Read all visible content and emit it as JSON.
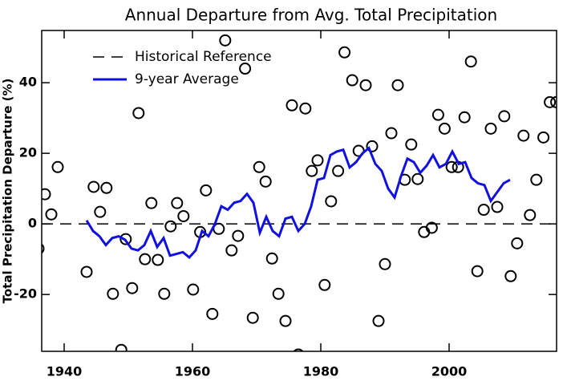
{
  "chart_data": {
    "type": "scatter",
    "title": "Annual Departure from Avg. Total Precipitation",
    "y_label": "Total Precipitation Departure (%)",
    "xlim": [
      1936.5,
      2016.75
    ],
    "ylim": [
      -36.1,
      54.8
    ],
    "xticks": [
      1940,
      1960,
      1980,
      2000
    ],
    "yticks": [
      -20,
      0,
      20,
      40
    ],
    "points": {
      "color": "#000000",
      "x": [
        1936,
        1937,
        1938,
        1939,
        1943.5,
        1944.6,
        1945.6,
        1946.6,
        1947.6,
        1948.9,
        1949.6,
        1950.6,
        1951.6,
        1952.6,
        1953.6,
        1954.6,
        1955.6,
        1956.6,
        1957.6,
        1958.6,
        1960.1,
        1961.2,
        1962.1,
        1963.1,
        1964.1,
        1965.1,
        1966.1,
        1967.1,
        1968.2,
        1969.4,
        1970.4,
        1971.4,
        1972.4,
        1973.4,
        1974.5,
        1975.5,
        1976.5,
        1977.6,
        1978.6,
        1979.5,
        1980.6,
        1981.6,
        1982.7,
        1983.7,
        1984.9,
        1985.9,
        1987,
        1988,
        1989,
        1990,
        1991,
        1992,
        1993.1,
        1994.1,
        1995.1,
        1996.1,
        1997.3,
        1998.3,
        1999.3,
        2000.4,
        2001.4,
        2002.4,
        2003.4,
        2004.4,
        2005.4,
        2006.5,
        2007.5,
        2008.6,
        2009.6,
        2010.6,
        2011.6,
        2012.6,
        2013.6,
        2014.7,
        2015.7,
        2016.7
      ],
      "values": [
        -7,
        8.4,
        2.7,
        16.1,
        -13.6,
        10.5,
        3.4,
        10.2,
        -19.8,
        -35.7,
        -4.3,
        -18.2,
        31.4,
        -10,
        5.9,
        -10.2,
        -19.8,
        -0.7,
        5.9,
        2.2,
        -18.6,
        -2.3,
        9.5,
        -25.5,
        -1.4,
        52,
        -7.5,
        -3.4,
        44,
        -26.6,
        16.1,
        12,
        -9.8,
        -19.8,
        -27.5,
        33.6,
        -37,
        32.7,
        15,
        18,
        -17.3,
        6.4,
        15,
        48.6,
        40.7,
        20.7,
        39.3,
        22,
        -27.5,
        -11.4,
        25.7,
        39.3,
        12.5,
        22.5,
        12.7,
        -2.3,
        -1.1,
        30.9,
        27,
        16.1,
        16.1,
        30.2,
        46,
        -13.4,
        4,
        27,
        4.8,
        30.5,
        -14.8,
        -5.5,
        25,
        2.5,
        12.5,
        24.5,
        34.5,
        34.5
      ]
    },
    "series": [
      {
        "name": "Historical Reference",
        "color": "#000000",
        "style": "dashed",
        "values": [
          0
        ]
      },
      {
        "name": "9-year Average",
        "color": "#1010e0",
        "style": "solid",
        "x": [
          1943.5,
          1944.5,
          1945.5,
          1946.5,
          1947.5,
          1948.5,
          1949.5,
          1950.5,
          1951.5,
          1952.5,
          1953.5,
          1954.5,
          1955.5,
          1956.5,
          1957.5,
          1958.5,
          1959.5,
          1960.5,
          1961.5,
          1962.5,
          1963.5,
          1964.5,
          1965.5,
          1966.5,
          1967.5,
          1968.5,
          1969.5,
          1970.5,
          1971.5,
          1972.5,
          1973.5,
          1974.5,
          1975.5,
          1976.5,
          1977.5,
          1978.5,
          1979.5,
          1980.5,
          1981.5,
          1982.5,
          1983.5,
          1984.5,
          1985.5,
          1986.5,
          1987.5,
          1988.5,
          1989.5,
          1990.5,
          1991.5,
          1992.5,
          1993.5,
          1994.5,
          1995.5,
          1996.5,
          1997.5,
          1998.5,
          1999.5,
          2000.5,
          2001.5,
          2002.5,
          2003.5,
          2004.5,
          2005.5,
          2006.5,
          2007.5,
          2008.5,
          2009.5
        ],
        "values": [
          1,
          -2,
          -3.5,
          -6,
          -4,
          -3.5,
          -4.5,
          -7,
          -7.5,
          -6,
          -2,
          -6.5,
          -4,
          -9,
          -8.5,
          -8,
          -9.5,
          -7.5,
          -2,
          -3.5,
          0,
          5,
          4,
          6,
          6.5,
          8.5,
          6,
          -2.5,
          2,
          -2,
          -3.5,
          1.5,
          2,
          -2,
          0,
          5,
          12.5,
          13,
          19.5,
          20.5,
          21,
          16,
          17.5,
          20,
          21.5,
          17,
          15,
          10,
          7.5,
          13.5,
          18.5,
          17.5,
          14.5,
          16.5,
          19.5,
          16,
          17,
          20.5,
          17,
          17.5,
          13,
          11.5,
          11,
          6.5,
          9,
          11.5,
          12.5
        ]
      }
    ]
  }
}
